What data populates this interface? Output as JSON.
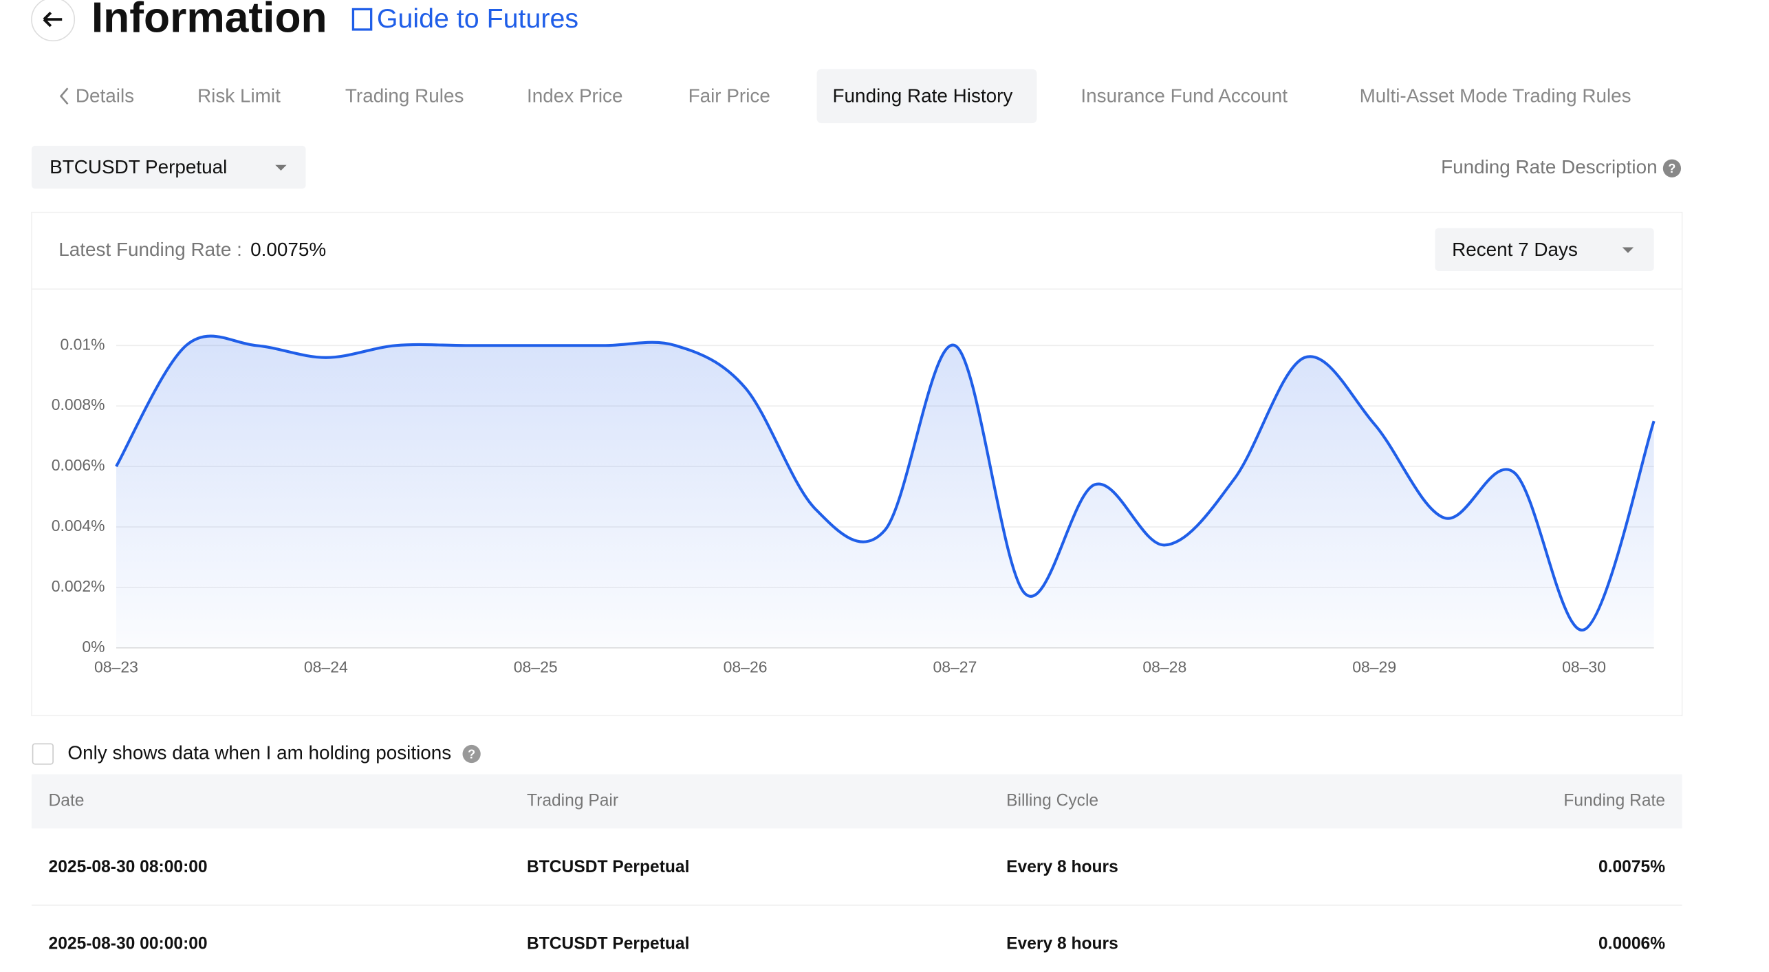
{
  "header": {
    "title": "Information",
    "guide_link": "Guide to Futures"
  },
  "tabs": [
    "Details",
    "Risk Limit",
    "Trading Rules",
    "Index Price",
    "Fair Price",
    "Funding Rate History",
    "Insurance Fund Account",
    "Multi-Asset Mode Trading Rules"
  ],
  "symbol_select": "BTCUSDT Perpetual",
  "description_link": "Funding Rate Description",
  "latest": {
    "label": "Latest Funding Rate :",
    "value": "0.0075%"
  },
  "range_select": "Recent 7 Days",
  "chart_data": {
    "type": "area",
    "color": "#1f5ee8",
    "categories": [
      "08–23",
      null,
      null,
      "08–24",
      null,
      null,
      "08–25",
      null,
      null,
      "08–26",
      null,
      null,
      "08–27",
      null,
      null,
      "08–28",
      null,
      null,
      "08–29",
      null,
      null,
      "08–30",
      null
    ],
    "values": [
      0.006,
      0.01,
      0.01,
      0.0096,
      0.01,
      0.01,
      0.01,
      0.01,
      0.01,
      0.0086,
      0.0046,
      0.0039,
      0.01,
      0.0018,
      0.0054,
      0.0034,
      0.0056,
      0.0096,
      0.0074,
      0.0043,
      0.0058,
      0.0006,
      0.0075
    ],
    "ylim": [
      0,
      0.01
    ],
    "yticks": [
      {
        "value": 0,
        "label": "0%"
      },
      {
        "value": 0.002,
        "label": "0.002%"
      },
      {
        "value": 0.004,
        "label": "0.004%"
      },
      {
        "value": 0.006,
        "label": "0.006%"
      },
      {
        "value": 0.008,
        "label": "0.008%"
      },
      {
        "value": 0.01,
        "label": "0.01%"
      }
    ],
    "grid": true
  },
  "filter_checkbox": "Only shows data when I am holding positions",
  "table": {
    "columns": [
      "Date",
      "Trading Pair",
      "Billing Cycle",
      "Funding Rate"
    ],
    "rows": [
      [
        "2025-08-30 08:00:00",
        "BTCUSDT Perpetual",
        "Every 8 hours",
        "0.0075%"
      ],
      [
        "2025-08-30 00:00:00",
        "BTCUSDT Perpetual",
        "Every 8 hours",
        "0.0006%"
      ]
    ]
  }
}
